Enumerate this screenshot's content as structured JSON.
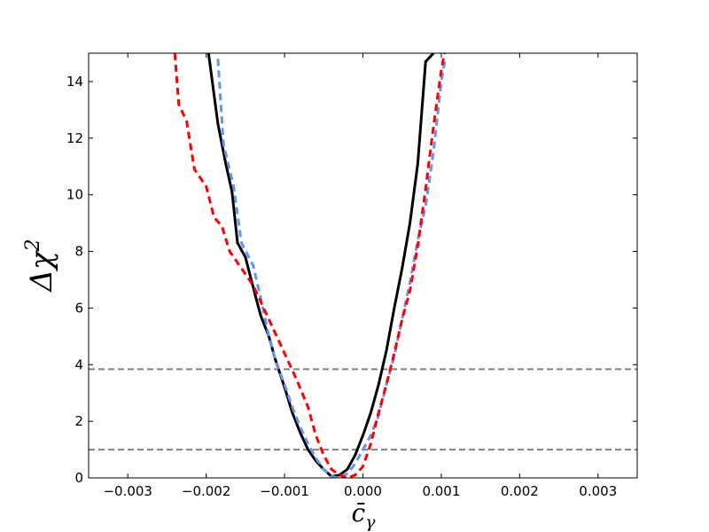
{
  "chart_data": {
    "type": "line",
    "xlabel": "c̄γ",
    "ylabel": "Δχ²",
    "xlim": [
      -0.0035,
      0.0035
    ],
    "ylim": [
      0,
      15
    ],
    "x_ticks": [
      -0.003,
      -0.002,
      -0.001,
      0.0,
      0.001,
      0.002,
      0.003
    ],
    "x_tick_labels": [
      "−0.003",
      "−0.002",
      "−0.001",
      "0.000",
      "0.001",
      "0.002",
      "0.003"
    ],
    "y_ticks": [
      0,
      2,
      4,
      6,
      8,
      10,
      12,
      14
    ],
    "y_tick_labels": [
      "0",
      "2",
      "4",
      "6",
      "8",
      "10",
      "12",
      "14"
    ],
    "grid": false,
    "legend": "none",
    "reference_lines": [
      {
        "y": 1.0,
        "color": "#808080",
        "style": "dashed"
      },
      {
        "y": 3.84,
        "color": "#808080",
        "style": "dashed"
      }
    ],
    "series": [
      {
        "color": "#000000",
        "style": "solid",
        "points": [
          [
            -0.00197,
            15.0
          ],
          [
            -0.00185,
            12.5
          ],
          [
            -0.00175,
            11.1
          ],
          [
            -0.00167,
            10.1
          ],
          [
            -0.0016,
            8.3
          ],
          [
            -0.0015,
            7.8
          ],
          [
            -0.00135,
            6.2
          ],
          [
            -0.0013,
            5.7
          ],
          [
            -0.0012,
            5.0
          ],
          [
            -0.00112,
            4.2
          ],
          [
            -0.001,
            3.2
          ],
          [
            -0.0009,
            2.3
          ],
          [
            -0.0008,
            1.6
          ],
          [
            -0.0007,
            1.0
          ],
          [
            -0.0006,
            0.6
          ],
          [
            -0.0005,
            0.3
          ],
          [
            -0.0004,
            0.05
          ],
          [
            -0.0003,
            0.1
          ],
          [
            -0.0002,
            0.3
          ],
          [
            -0.0001,
            0.8
          ],
          [
            0.0,
            1.5
          ],
          [
            0.0001,
            2.3
          ],
          [
            0.0002,
            3.3
          ],
          [
            0.0003,
            4.5
          ],
          [
            0.0004,
            6.0
          ],
          [
            0.0005,
            7.4
          ],
          [
            0.0006,
            9.0
          ],
          [
            0.0007,
            11.1
          ],
          [
            0.0008,
            14.7
          ],
          [
            0.0009,
            15.0
          ]
        ]
      },
      {
        "color": "#6495ed",
        "style": "dashed",
        "points": [
          [
            -0.00185,
            14.8
          ],
          [
            -0.00178,
            11.8
          ],
          [
            -0.00165,
            10.3
          ],
          [
            -0.0016,
            9.3
          ],
          [
            -0.00155,
            8.3
          ],
          [
            -0.0014,
            7.5
          ],
          [
            -0.0013,
            6.3
          ],
          [
            -0.0012,
            5.0
          ],
          [
            -0.0011,
            4.0
          ],
          [
            -0.001,
            3.3
          ],
          [
            -0.0009,
            2.5
          ],
          [
            -0.0008,
            1.8
          ],
          [
            -0.0007,
            1.2
          ],
          [
            -0.0006,
            0.7
          ],
          [
            -0.0005,
            0.3
          ],
          [
            -0.0004,
            0.05
          ],
          [
            -0.0003,
            0.0
          ],
          [
            -0.0002,
            0.15
          ],
          [
            -0.0001,
            0.5
          ],
          [
            0.0,
            1.0
          ],
          [
            0.0001,
            1.5
          ],
          [
            0.0002,
            2.2
          ],
          [
            0.0003,
            3.3
          ],
          [
            0.0004,
            4.3
          ],
          [
            0.0005,
            5.6
          ],
          [
            0.0006,
            6.9
          ],
          [
            0.0007,
            8.4
          ],
          [
            0.0008,
            9.6
          ],
          [
            0.0009,
            11.5
          ],
          [
            0.001,
            14.0
          ],
          [
            0.00105,
            14.8
          ]
        ]
      },
      {
        "color": "#ff0000",
        "style": "dashed",
        "points": [
          [
            -0.0024,
            15.0
          ],
          [
            -0.00235,
            13.2
          ],
          [
            -0.00225,
            12.6
          ],
          [
            -0.00215,
            10.9
          ],
          [
            -0.002,
            10.3
          ],
          [
            -0.0019,
            9.2
          ],
          [
            -0.0018,
            8.9
          ],
          [
            -0.0017,
            8.0
          ],
          [
            -0.00155,
            7.4
          ],
          [
            -0.0014,
            6.8
          ],
          [
            -0.0012,
            5.6
          ],
          [
            -0.001,
            4.4
          ],
          [
            -0.00085,
            3.5
          ],
          [
            -0.0007,
            2.5
          ],
          [
            -0.0006,
            1.5
          ],
          [
            -0.0005,
            0.8
          ],
          [
            -0.0004,
            0.3
          ],
          [
            -0.0003,
            0.1
          ],
          [
            -0.0002,
            0.0
          ],
          [
            -0.0001,
            0.1
          ],
          [
            0.0,
            0.4
          ],
          [
            0.0001,
            1.2
          ],
          [
            0.0002,
            2.3
          ],
          [
            0.0003,
            3.3
          ],
          [
            0.0004,
            4.4
          ],
          [
            0.0005,
            5.6
          ],
          [
            0.0006,
            6.6
          ],
          [
            0.0007,
            8.2
          ],
          [
            0.0008,
            10.2
          ],
          [
            0.0009,
            12.4
          ],
          [
            0.001,
            14.4
          ],
          [
            0.00104,
            15.0
          ]
        ]
      }
    ]
  }
}
